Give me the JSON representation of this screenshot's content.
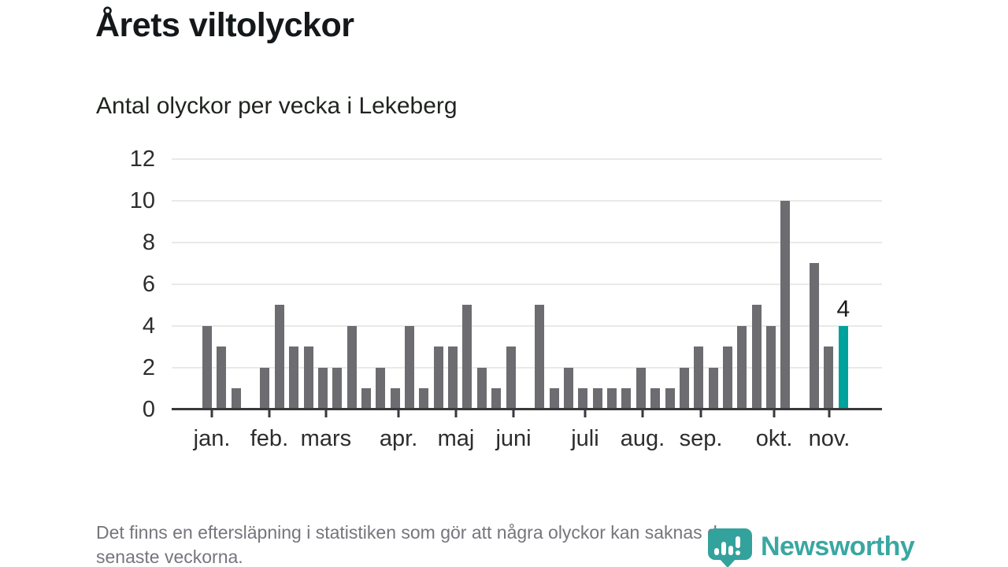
{
  "title": "Årets viltolyckor",
  "subtitle": "Antal olyckor per vecka i Lekeberg",
  "footer": {
    "lines": [
      "Det finns en eftersläpning i statistiken som gör att några olyckor kan saknas de",
      "senaste veckorna."
    ]
  },
  "logo": {
    "text": "Newsworthy",
    "icon": "newsworthy-pin-barchart-icon"
  },
  "colors": {
    "bar": "#6c6c71",
    "highlight": "#00a29b",
    "grid": "#e9e9e7",
    "axis": "#39393d",
    "logo_teal": "#3aa7a1"
  },
  "chart_data": {
    "type": "bar",
    "title": "Årets viltolyckor",
    "subtitle": "Antal olyckor per vecka i Lekeberg",
    "xlabel": "",
    "ylabel": "",
    "x_unit": "vecka",
    "ylim": [
      0,
      12
    ],
    "y_ticks": [
      0,
      2,
      4,
      6,
      8,
      10,
      12
    ],
    "grid": "horizontal",
    "values": [
      4,
      3,
      1,
      0,
      2,
      5,
      3,
      3,
      2,
      2,
      4,
      1,
      2,
      1,
      4,
      1,
      3,
      3,
      5,
      2,
      1,
      3,
      0,
      5,
      1,
      2,
      1,
      1,
      1,
      1,
      2,
      1,
      1,
      2,
      3,
      2,
      3,
      4,
      5,
      4,
      10,
      0,
      7,
      3,
      4
    ],
    "highlight_index": 44,
    "highlight_value": 4,
    "highlight_label": "4",
    "months": [
      {
        "label": "jan.",
        "slot": 0.33
      },
      {
        "label": "feb.",
        "slot": 4.3
      },
      {
        "label": "mars",
        "slot": 8.22
      },
      {
        "label": "apr.",
        "slot": 13.24
      },
      {
        "label": "maj",
        "slot": 17.21
      },
      {
        "label": "juni",
        "slot": 21.19
      },
      {
        "label": "juli",
        "slot": 26.14
      },
      {
        "label": "aug.",
        "slot": 30.12
      },
      {
        "label": "sep.",
        "slot": 34.15
      },
      {
        "label": "okt.",
        "slot": 39.22
      },
      {
        "label": "nov.",
        "slot": 43.03
      }
    ]
  }
}
